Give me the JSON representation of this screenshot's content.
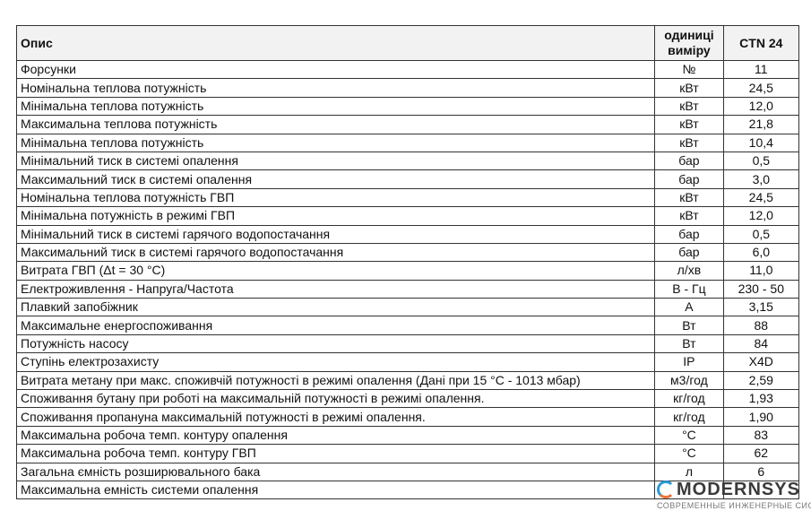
{
  "table": {
    "headers": {
      "description": "Опис",
      "unit_line1": "одиниці",
      "unit_line2": "виміру",
      "model": "CTN 24"
    },
    "rows": [
      {
        "description": "Форсунки",
        "unit": "№",
        "value": "11"
      },
      {
        "description": "Номінальна теплова потужність",
        "unit": "кВт",
        "value": "24,5"
      },
      {
        "description": "Мінімальна теплова потужність",
        "unit": "кВт",
        "value": "12,0"
      },
      {
        "description": "Максимальна теплова потужність",
        "unit": "кВт",
        "value": "21,8"
      },
      {
        "description": "Мінімальна теплова потужність",
        "unit": "кВт",
        "value": "10,4"
      },
      {
        "description": "Мінімальний тиск в системі опалення",
        "unit": "бар",
        "value": "0,5"
      },
      {
        "description": "Максимальний тиск в системі опалення",
        "unit": "бар",
        "value": "3,0"
      },
      {
        "description": "Номінальна теплова потужність ГВП",
        "unit": "кВт",
        "value": "24,5"
      },
      {
        "description": "Мінімальна потужність в режимі ГВП",
        "unit": "кВт",
        "value": "12,0"
      },
      {
        "description": "Мінімальний тиск в системі гарячого водопостачання",
        "unit": "бар",
        "value": "0,5"
      },
      {
        "description": "Максимальний тиск в системі гарячого водопостачання",
        "unit": "бар",
        "value": "6,0"
      },
      {
        "description": "Витрата ГВП (Δt = 30 °C)",
        "unit": "л/хв",
        "value": "11,0"
      },
      {
        "description": "Електроживлення - Напруга/Частота",
        "unit": "В - Гц",
        "value": "230 - 50"
      },
      {
        "description": "Плавкий запобіжник",
        "unit": "А",
        "value": "3,15"
      },
      {
        "description": "Максимальне енергоспоживання",
        "unit": "Вт",
        "value": "88"
      },
      {
        "description": "Потужність насосу",
        "unit": "Вт",
        "value": "84"
      },
      {
        "description": "Ступінь електрозахисту",
        "unit": "IP",
        "value": "X4D"
      },
      {
        "description": "Витрата метану при макс. споживчій потужності в режимі опалення (Дані при 15 °C - 1013 мбар)",
        "unit": "м3/год",
        "value": "2,59"
      },
      {
        "description": "Споживання бутану при роботі на максимальній потужності в режимі опалення.",
        "unit": "кг/год",
        "value": "1,93"
      },
      {
        "description": "Споживання пропануна максимальній потужності в режимі опалення.",
        "unit": "кг/год",
        "value": "1,90"
      },
      {
        "description": "Максимальна робоча темп. контуру опалення",
        "unit": "°C",
        "value": "83"
      },
      {
        "description": "Максимальна робоча темп. контуру ГВП",
        "unit": "°C",
        "value": "62"
      },
      {
        "description": "Загальна ємність розширювального бака",
        "unit": "л",
        "value": "6"
      },
      {
        "description": "Максимальна емність системи опалення",
        "unit": "",
        "value": ""
      }
    ]
  },
  "watermark": {
    "name": "MODERNSYS",
    "tagline": "СОВРЕМЕННЫЕ ИНЖЕНЕРНЫЕ СИСТЕМЫ",
    "colors": [
      "#2a9ad6",
      "#e8763a"
    ]
  }
}
